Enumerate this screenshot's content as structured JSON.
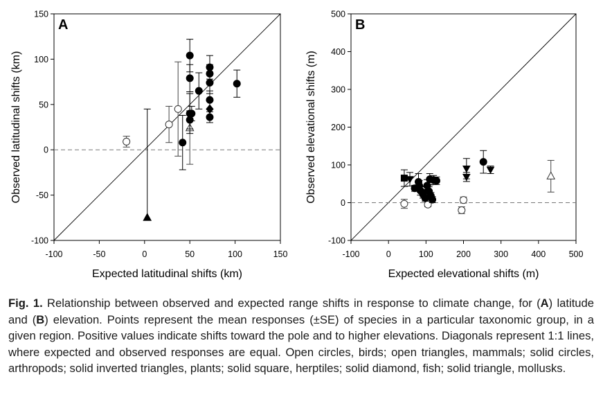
{
  "chart_data": [
    {
      "type": "scatter",
      "panel_label": "A",
      "xlabel": "Expected latitudinal shifts (km)",
      "ylabel": "Observed latitudinal shifts (km)",
      "xlim": [
        -100,
        150
      ],
      "ylim": [
        -100,
        150
      ],
      "xticks": [
        "-100",
        "-50",
        "0",
        "50",
        "100",
        "150"
      ],
      "yticks": [
        "-100",
        "-50",
        "0",
        "50",
        "100",
        "150"
      ],
      "reference_lines": [
        "1:1 diagonal (solid)",
        "y = 0 (dashed)"
      ],
      "grid": false,
      "legend": "none",
      "series": [
        {
          "marker": "open circle",
          "points": [
            {
              "x": -20,
              "y": 9,
              "se_up": 6,
              "se_down": 6
            },
            {
              "x": 27,
              "y": 28,
              "se_up": 20,
              "se_down": 20
            },
            {
              "x": 37,
              "y": 45,
              "se_up": 52,
              "se_down": 52
            }
          ]
        },
        {
          "marker": "open triangle up",
          "points": [
            {
              "x": 50,
              "y": 24,
              "se_up": 40,
              "se_down": 40
            }
          ]
        },
        {
          "marker": "solid circle",
          "points": [
            {
              "x": 50,
              "y": 104,
              "se_up": 18,
              "se_down": 18
            },
            {
              "x": 50,
              "y": 79,
              "se_up": 15,
              "se_down": 15
            },
            {
              "x": 50,
              "y": 40,
              "se_up": 22,
              "se_down": 22
            },
            {
              "x": 50,
              "y": 33,
              "se_up": 10,
              "se_down": 10
            },
            {
              "x": 52,
              "y": 40,
              "se_up": 8,
              "se_down": 8
            },
            {
              "x": 60,
              "y": 65,
              "se_up": 20,
              "se_down": 20
            },
            {
              "x": 72,
              "y": 91,
              "se_up": 13,
              "se_down": 13
            },
            {
              "x": 72,
              "y": 84,
              "se_up": 10,
              "se_down": 10
            },
            {
              "x": 72,
              "y": 74,
              "se_up": 12,
              "se_down": 12
            },
            {
              "x": 72,
              "y": 55,
              "se_up": 10,
              "se_down": 10
            },
            {
              "x": 72,
              "y": 36,
              "se_up": 6,
              "se_down": 6
            },
            {
              "x": 42,
              "y": 8,
              "se_up": 30,
              "se_down": 30
            },
            {
              "x": 102,
              "y": 73,
              "se_up": 15,
              "se_down": 15
            }
          ]
        },
        {
          "marker": "solid diamond",
          "points": [
            {
              "x": 72,
              "y": 45,
              "se_up": 9,
              "se_down": 9
            }
          ]
        },
        {
          "marker": "solid triangle up",
          "points": [
            {
              "x": 3,
              "y": -75,
              "se_up": 120,
              "se_down": 0
            }
          ]
        }
      ]
    },
    {
      "type": "scatter",
      "panel_label": "B",
      "xlabel": "Expected elevational shifts (m)",
      "ylabel": "Observed elevational shifts (m)",
      "xlim": [
        -100,
        500
      ],
      "ylim": [
        -100,
        500
      ],
      "xticks": [
        "-100",
        "0",
        "100",
        "200",
        "300",
        "400",
        "500"
      ],
      "yticks": [
        "-100",
        "0",
        "100",
        "200",
        "300",
        "400",
        "500"
      ],
      "reference_lines": [
        "1:1 diagonal (solid)",
        "y = 0 (dashed)"
      ],
      "grid": false,
      "legend": "none",
      "series": [
        {
          "marker": "open circle",
          "points": [
            {
              "x": 42,
              "y": -3,
              "se_up": 12,
              "se_down": 12
            },
            {
              "x": 105,
              "y": -5,
              "se_up": 6,
              "se_down": 6
            },
            {
              "x": 195,
              "y": -20,
              "se_up": 9,
              "se_down": 9
            },
            {
              "x": 200,
              "y": 7,
              "se_up": 8,
              "se_down": 8
            }
          ]
        },
        {
          "marker": "open triangle up",
          "points": [
            {
              "x": 433,
              "y": 70,
              "se_up": 42,
              "se_down": 42
            }
          ]
        },
        {
          "marker": "solid circle",
          "points": [
            {
              "x": 70,
              "y": 38,
              "se_up": 8,
              "se_down": 8
            },
            {
              "x": 80,
              "y": 55,
              "se_up": 22,
              "se_down": 22
            },
            {
              "x": 82,
              "y": 45,
              "se_up": 14,
              "se_down": 14
            },
            {
              "x": 85,
              "y": 32,
              "se_up": 12,
              "se_down": 12
            },
            {
              "x": 92,
              "y": 22,
              "se_up": 10,
              "se_down": 10
            },
            {
              "x": 98,
              "y": 12,
              "se_up": 8,
              "se_down": 8
            },
            {
              "x": 103,
              "y": 45,
              "se_up": 16,
              "se_down": 16
            },
            {
              "x": 108,
              "y": 30,
              "se_up": 12,
              "se_down": 12
            },
            {
              "x": 110,
              "y": 62,
              "se_up": 15,
              "se_down": 15
            },
            {
              "x": 113,
              "y": 18,
              "se_up": 9,
              "se_down": 9
            },
            {
              "x": 117,
              "y": 8,
              "se_up": 8,
              "se_down": 8
            },
            {
              "x": 120,
              "y": 60,
              "se_up": 12,
              "se_down": 12
            },
            {
              "x": 128,
              "y": 58,
              "se_up": 10,
              "se_down": 10
            },
            {
              "x": 253,
              "y": 108,
              "se_up": 30,
              "se_down": 30
            }
          ]
        },
        {
          "marker": "solid square",
          "points": [
            {
              "x": 42,
              "y": 65,
              "se_up": 22,
              "se_down": 22
            }
          ]
        },
        {
          "marker": "solid inverted triangle",
          "points": [
            {
              "x": 57,
              "y": 62,
              "se_up": 18,
              "se_down": 18
            },
            {
              "x": 100,
              "y": 28,
              "se_up": 14,
              "se_down": 14
            },
            {
              "x": 208,
              "y": 90,
              "se_up": 27,
              "se_down": 27
            },
            {
              "x": 208,
              "y": 68,
              "se_up": 12,
              "se_down": 12
            },
            {
              "x": 272,
              "y": 87,
              "se_up": 10,
              "se_down": 10
            }
          ]
        }
      ]
    }
  ],
  "caption": {
    "fig_label": "Fig. 1.",
    "part1": " Relationship between observed and expected range shifts in response to climate change, for (",
    "label_a": "A",
    "part2": ") latitude and (",
    "label_b": "B",
    "part3": ") elevation. Points represent the mean responses (±SE) of species in a particular taxonomic group, in a given region. Positive values indicate shifts toward the pole and to higher elevations. Diagonals represent 1:1 lines, where expected and observed responses are equal. Open circles, birds; open triangles, mammals; solid circles, arthropods; solid inverted triangles, plants; solid square, herptiles; solid diamond, fish; solid triangle, mollusks."
  }
}
